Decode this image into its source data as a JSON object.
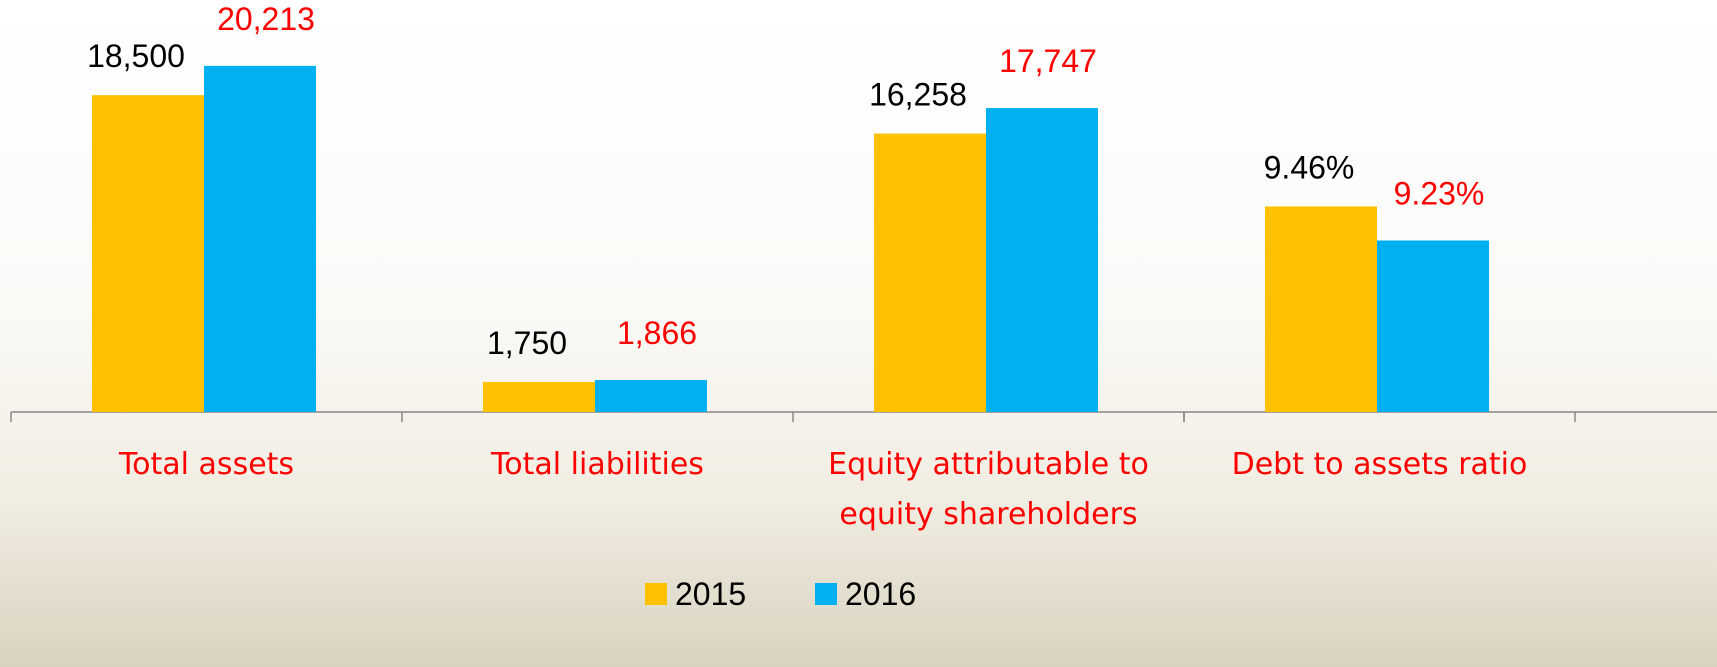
{
  "chart_data": [
    {
      "type": "bar",
      "categories": [
        "Total assets",
        "Total liabilities",
        "Equity attributable to equity shareholders"
      ],
      "category_color": "#ff0000",
      "series": [
        {
          "name": "2015",
          "color": "#ffc000",
          "label_color": "#000000",
          "values": [
            18500,
            1750,
            16258
          ],
          "value_labels": [
            "18,500",
            "1,750",
            "16,258"
          ]
        },
        {
          "name": "2016",
          "color": "#00b0f0",
          "label_color": "#ff0000",
          "values": [
            20213,
            1866,
            17747
          ],
          "value_labels": [
            "20,213",
            "1,866",
            "17,747"
          ]
        }
      ],
      "ylim": [
        0,
        24000
      ],
      "legend": "bottom"
    },
    {
      "type": "bar",
      "categories": [
        "Debt to assets ratio"
      ],
      "category_color": "#ff0000",
      "series": [
        {
          "color": "#ffc000",
          "label_color": "#000000",
          "values": [
            9.46
          ],
          "value_labels": [
            "9.46%"
          ]
        },
        {
          "color": "#00b0f0",
          "label_color": "#ff0000",
          "values": [
            9.23
          ],
          "value_labels": [
            "9.23%"
          ]
        }
      ],
      "ylim": [
        8.07,
        10.85
      ]
    }
  ]
}
